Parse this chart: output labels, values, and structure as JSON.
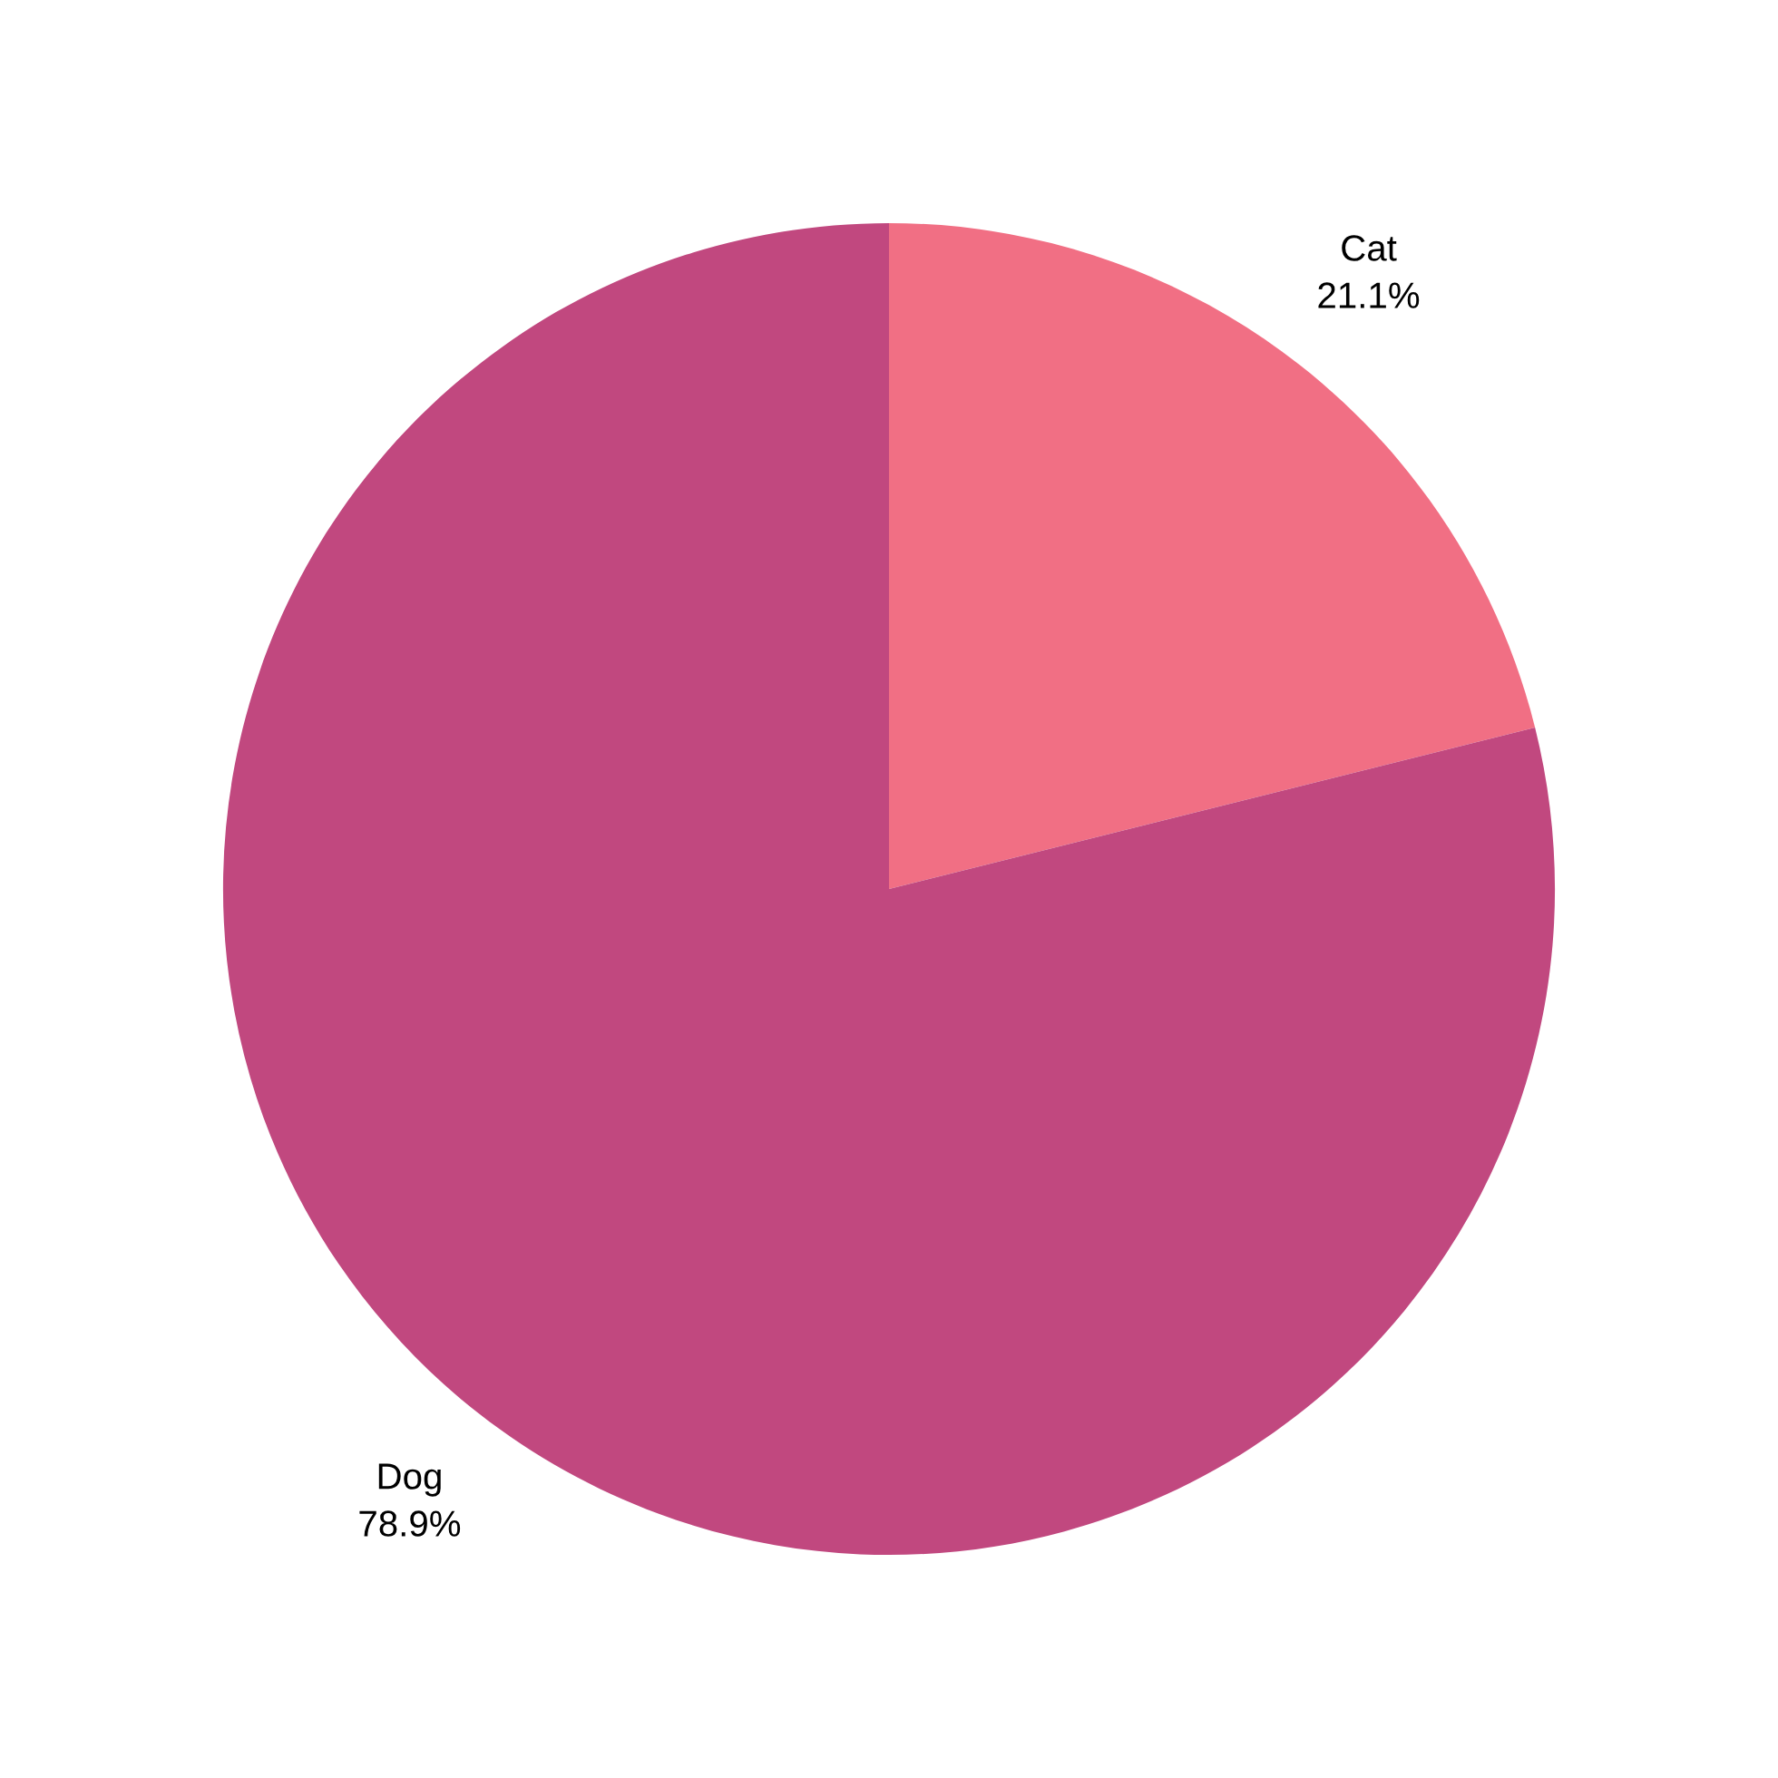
{
  "chart_data": {
    "type": "pie",
    "categories": [
      "Cat",
      "Dog"
    ],
    "values": [
      21.1,
      78.9
    ],
    "value_labels": [
      "21.1%",
      "78.9%"
    ],
    "colors": [
      "#f16f84",
      "#c1487f"
    ],
    "legend": false
  }
}
